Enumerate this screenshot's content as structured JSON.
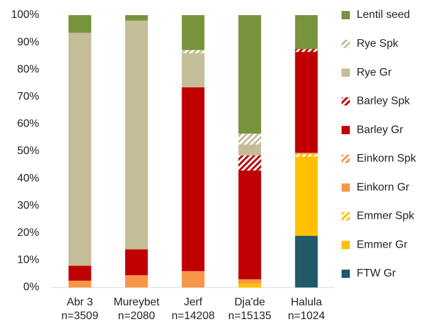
{
  "chart_data": {
    "type": "stacked_bar",
    "categories": [
      "Abr 3",
      "Mureybet",
      "Jerf",
      "Dja'de",
      "Halula"
    ],
    "category_sublabels": [
      "n=3509",
      "n=2080",
      "n=14208",
      "n=15135",
      "n=1024"
    ],
    "series": [
      {
        "name": "FTW Gr",
        "color": "#215968",
        "hatch": false,
        "values": [
          0,
          0,
          0,
          0,
          19
        ]
      },
      {
        "name": "Emmer Gr",
        "color": "#ffc000",
        "hatch": false,
        "values": [
          0,
          0,
          0,
          1.5,
          29
        ]
      },
      {
        "name": "Emmer Spk",
        "color": "#ffc000",
        "hatch": true,
        "values": [
          0,
          0,
          0,
          0,
          1
        ]
      },
      {
        "name": "Einkorn Gr",
        "color": "#f79646",
        "hatch": false,
        "values": [
          2.5,
          4.5,
          6,
          1.5,
          0.5
        ]
      },
      {
        "name": "Einkorn Spk",
        "color": "#f79646",
        "hatch": true,
        "values": [
          0,
          0,
          0,
          0,
          0
        ]
      },
      {
        "name": "Barley Gr",
        "color": "#c00000",
        "hatch": false,
        "values": [
          5.5,
          9.5,
          67.5,
          40,
          37
        ]
      },
      {
        "name": "Barley Spk",
        "color": "#c00000",
        "hatch": true,
        "values": [
          0,
          0,
          0,
          5.5,
          1
        ]
      },
      {
        "name": "Rye Gr",
        "color": "#c4bd97",
        "hatch": false,
        "values": [
          85.5,
          84,
          12.5,
          4,
          0
        ]
      },
      {
        "name": "Rye Spk",
        "color": "#c4bd97",
        "hatch": true,
        "values": [
          0,
          0,
          1.2,
          4,
          0
        ]
      },
      {
        "name": "Lentil seed",
        "color": "#77933c",
        "hatch": false,
        "values": [
          6.5,
          2,
          12.8,
          43.5,
          12.5
        ]
      }
    ],
    "ylim": [
      0,
      100
    ],
    "yticks": [
      {
        "value": 0,
        "label": "0%"
      },
      {
        "value": 10,
        "label": "10%"
      },
      {
        "value": 20,
        "label": "20%"
      },
      {
        "value": 30,
        "label": "30%"
      },
      {
        "value": 40,
        "label": "40%"
      },
      {
        "value": 50,
        "label": "50%"
      },
      {
        "value": 60,
        "label": "60%"
      },
      {
        "value": 70,
        "label": "70%"
      },
      {
        "value": 80,
        "label": "80%"
      },
      {
        "value": 90,
        "label": "90%"
      },
      {
        "value": 100,
        "label": "100%"
      }
    ],
    "legend": "right"
  }
}
